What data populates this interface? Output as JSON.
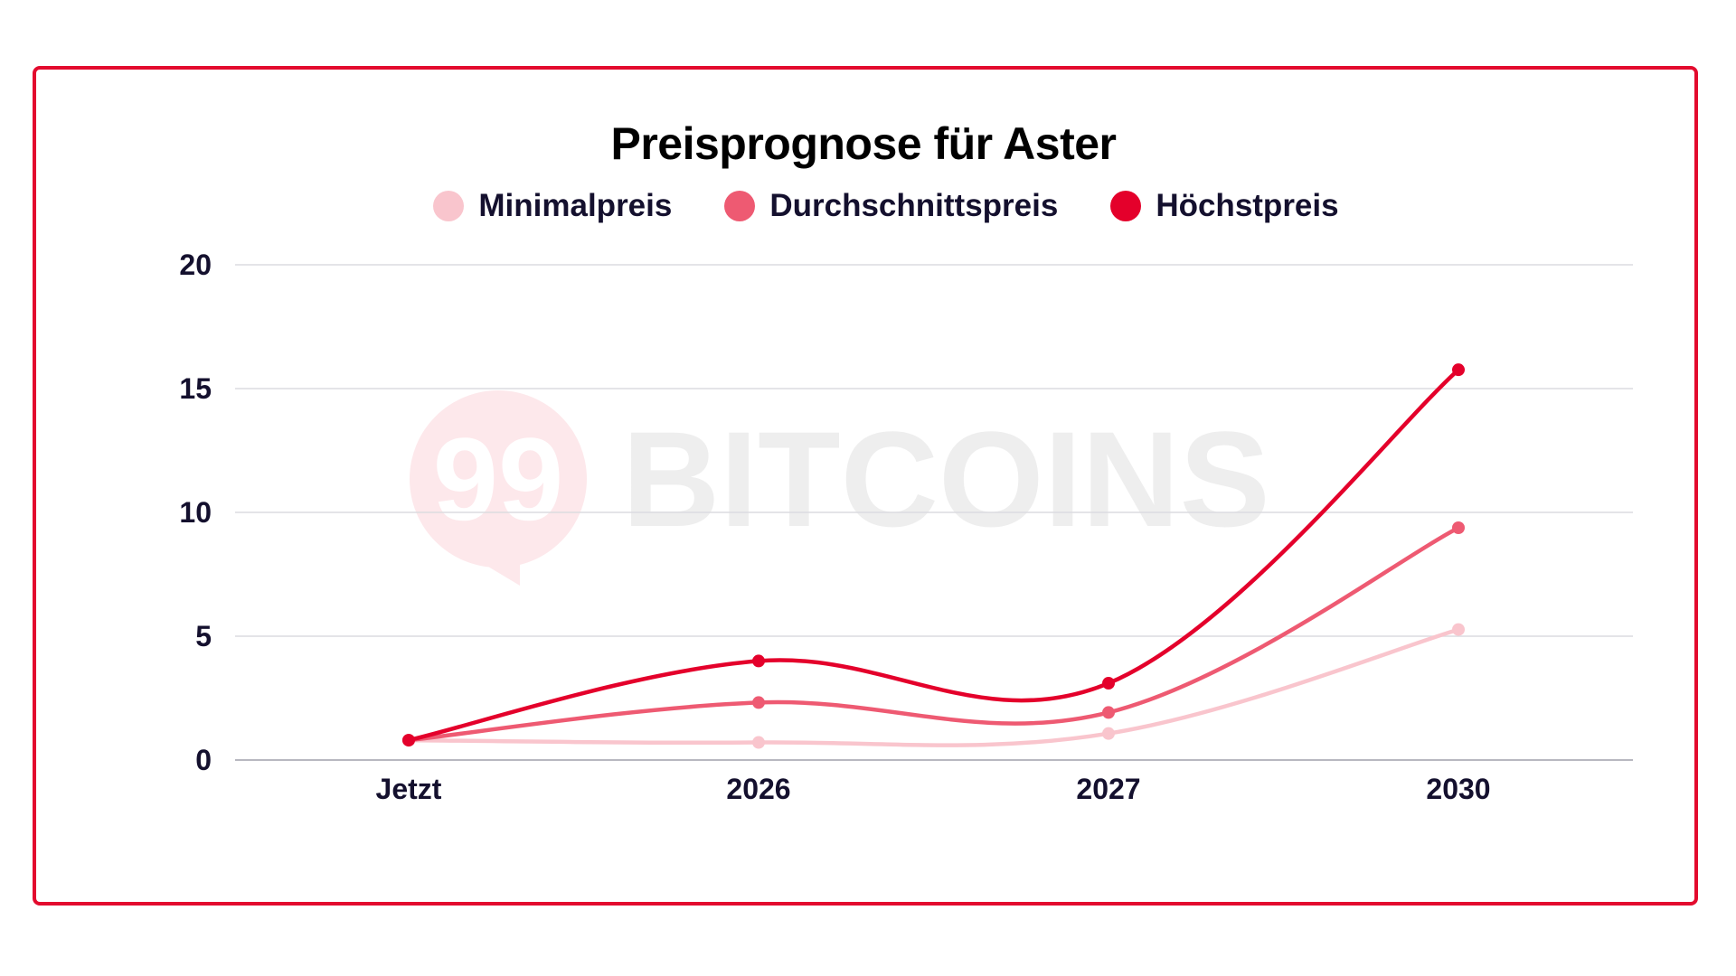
{
  "chart_data": {
    "type": "line",
    "title": "Preisprognose für Aster",
    "categories": [
      "Jetzt",
      "2026",
      "2027",
      "2030"
    ],
    "series": [
      {
        "name": "Minimalpreis",
        "color": "#f9c5cd",
        "values": [
          0.8,
          0.71,
          1.07,
          5.27
        ]
      },
      {
        "name": "Durchschnittspreis",
        "color": "#ee5a72",
        "values": [
          0.8,
          2.32,
          1.92,
          9.38
        ]
      },
      {
        "name": "Höchstpreis",
        "color": "#e4002b",
        "values": [
          0.8,
          4.0,
          3.1,
          15.76
        ]
      }
    ],
    "xlabel": "",
    "ylabel": "",
    "ylim": [
      0,
      20
    ],
    "yticks": [
      0,
      5,
      10,
      15,
      20
    ],
    "grid": true,
    "legend_position": "top",
    "smooth": true
  },
  "watermark": {
    "logo_text": "99",
    "brand_text": "BITCOINS"
  },
  "colors": {
    "frame": "#e30b2e",
    "text": "#14102e",
    "grid": "#dcdce0"
  }
}
